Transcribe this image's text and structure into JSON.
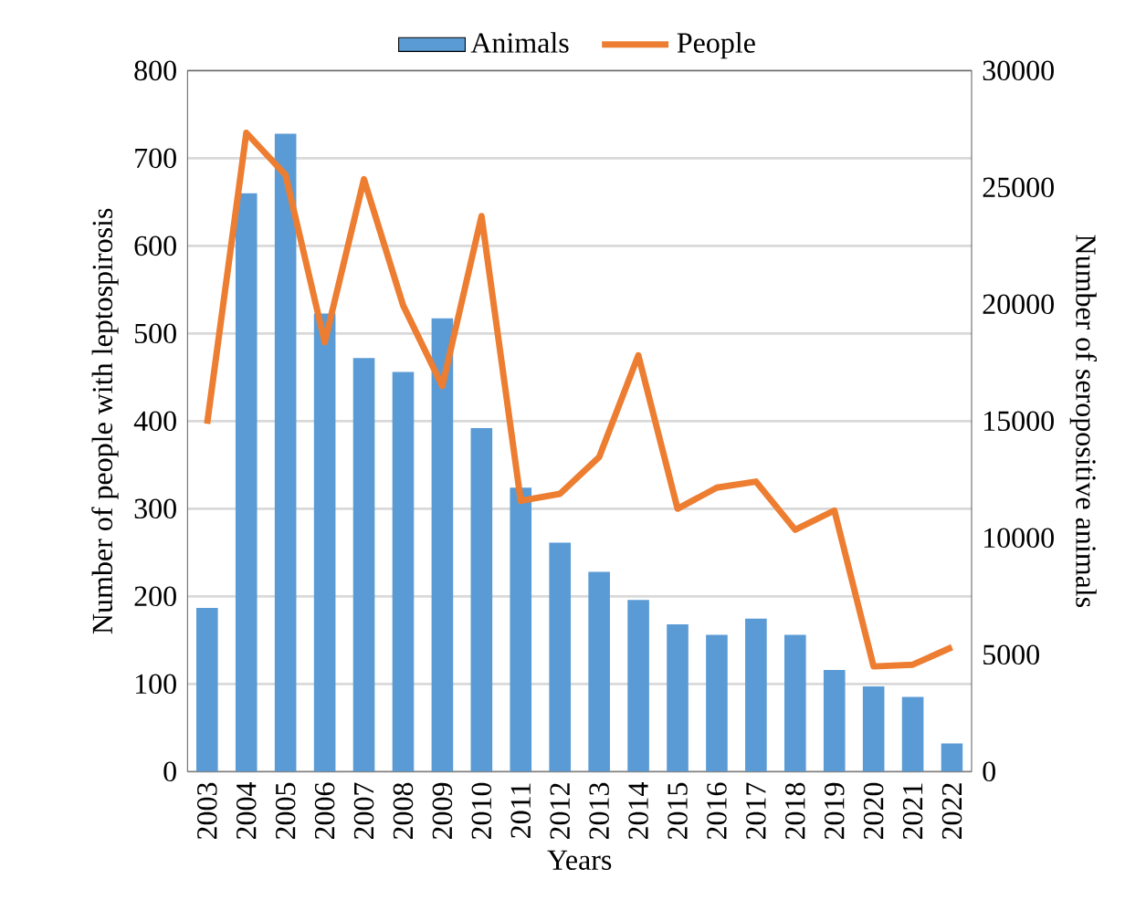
{
  "chart_data": {
    "type": "bar",
    "xlabel": "Years",
    "ylabel": "Number of people with leptospirosis",
    "y2label": "Number of seropositive animals",
    "categories": [
      "2003",
      "2004",
      "2005",
      "2006",
      "2007",
      "2008",
      "2009",
      "2010",
      "2011",
      "2012",
      "2013",
      "2014",
      "2015",
      "2016",
      "2017",
      "2018",
      "2019",
      "2020",
      "2021",
      "2022"
    ],
    "series": [
      {
        "name": "Animals",
        "axis": "y2",
        "color": "#5b9bd5",
        "values": [
          7000,
          24750,
          27300,
          19600,
          17700,
          17100,
          19400,
          14700,
          12150,
          9800,
          8550,
          7350,
          6300,
          5850,
          6550,
          5850,
          4350,
          3650,
          3200,
          1200
        ]
      },
      {
        "name": "People",
        "type": "line",
        "color": "#ed7d31",
        "values": [
          397,
          729,
          681,
          490,
          676,
          532,
          440,
          634,
          309,
          317,
          359,
          475,
          300,
          324,
          331,
          276,
          298,
          120,
          122,
          142
        ]
      }
    ],
    "ylim": [
      0,
      800
    ],
    "yticks": [
      0,
      100,
      200,
      300,
      400,
      500,
      600,
      700,
      800
    ],
    "y2lim": [
      0,
      30000
    ],
    "y2ticks": [
      0,
      5000,
      10000,
      15000,
      20000,
      25000,
      30000
    ],
    "grid": "y",
    "legend": "top",
    "marker": "none"
  }
}
